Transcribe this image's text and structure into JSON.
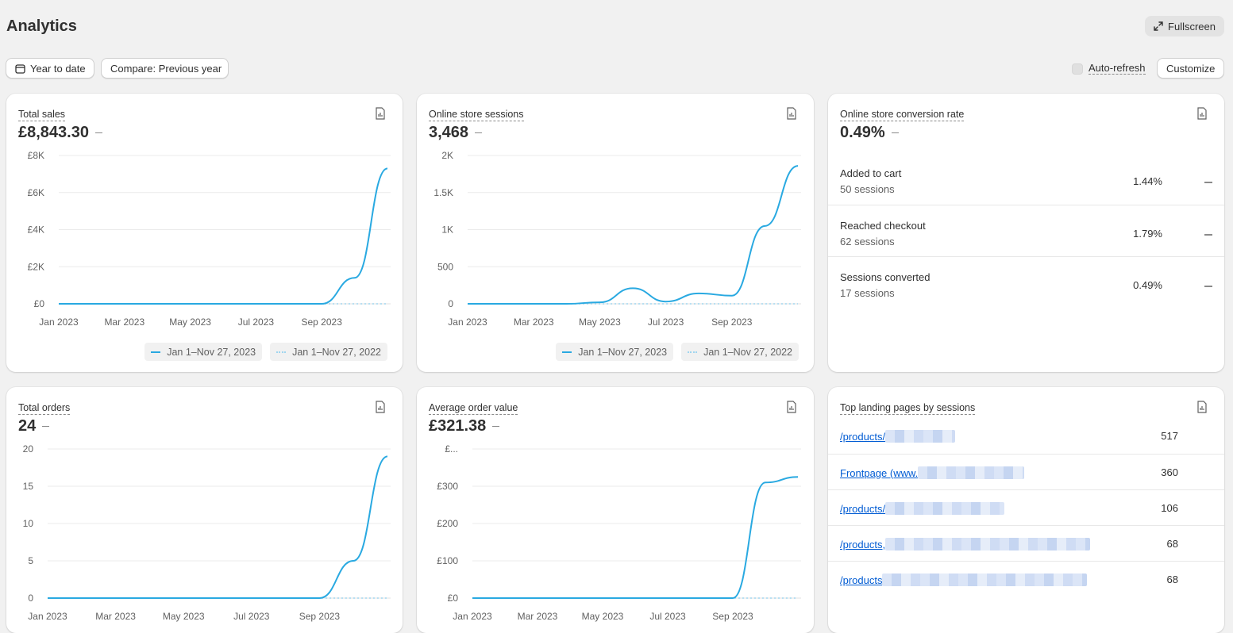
{
  "header": {
    "title": "Analytics",
    "fullscreen_label": "Fullscreen",
    "date_range_label": "Year to date",
    "compare_label": "Compare: Previous year",
    "auto_refresh_label": "Auto-refresh",
    "customize_label": "Customize"
  },
  "colors": {
    "series_current": "#29a9e1",
    "series_previous": "#9fd5ef",
    "link": "#005bd3"
  },
  "legend": {
    "current": "Jan 1–Nov 27, 2023",
    "previous": "Jan 1–Nov 27, 2022"
  },
  "cards": {
    "total_sales": {
      "title": "Total sales",
      "value": "£8,843.30"
    },
    "sessions": {
      "title": "Online store sessions",
      "value": "3,468"
    },
    "conversion": {
      "title": "Online store conversion rate",
      "value": "0.49%",
      "rows": [
        {
          "label": "Added to cart",
          "sub": "50 sessions",
          "pct": "1.44%"
        },
        {
          "label": "Reached checkout",
          "sub": "62 sessions",
          "pct": "1.79%"
        },
        {
          "label": "Sessions converted",
          "sub": "17 sessions",
          "pct": "0.49%"
        }
      ]
    },
    "orders": {
      "title": "Total orders",
      "value": "24"
    },
    "aov": {
      "title": "Average order value",
      "value": "£321.38"
    },
    "landing": {
      "title": "Top landing pages by sessions",
      "rows": [
        {
          "label": "/products/",
          "count": "517"
        },
        {
          "label": "Frontpage (www.",
          "count": "360"
        },
        {
          "label": "/products/",
          "count": "106"
        },
        {
          "label": "/products,",
          "count": "68"
        },
        {
          "label": "/products",
          "count": "68"
        }
      ]
    }
  },
  "chart_data": [
    {
      "type": "line",
      "title": "Total sales",
      "x": [
        "Jan 2023",
        "Feb 2023",
        "Mar 2023",
        "Apr 2023",
        "May 2023",
        "Jun 2023",
        "Jul 2023",
        "Aug 2023",
        "Sep 2023",
        "Oct 2023",
        "Nov 2023"
      ],
      "x_ticks": [
        "Jan 2023",
        "Mar 2023",
        "May 2023",
        "Jul 2023",
        "Sep 2023"
      ],
      "y_ticks": [
        "£0",
        "£2K",
        "£4K",
        "£6K",
        "£8K"
      ],
      "ylim": [
        0,
        8000
      ],
      "series": [
        {
          "name": "Jan 1–Nov 27, 2023",
          "values": [
            0,
            0,
            0,
            0,
            0,
            0,
            0,
            0,
            0,
            1400,
            7300
          ]
        },
        {
          "name": "Jan 1–Nov 27, 2022",
          "values": [
            0,
            0,
            0,
            0,
            0,
            0,
            0,
            0,
            0,
            0,
            0
          ]
        }
      ]
    },
    {
      "type": "line",
      "title": "Online store sessions",
      "x": [
        "Jan 2023",
        "Feb 2023",
        "Mar 2023",
        "Apr 2023",
        "May 2023",
        "Jun 2023",
        "Jul 2023",
        "Aug 2023",
        "Sep 2023",
        "Oct 2023",
        "Nov 2023"
      ],
      "x_ticks": [
        "Jan 2023",
        "Mar 2023",
        "May 2023",
        "Jul 2023",
        "Sep 2023"
      ],
      "y_ticks": [
        "0",
        "500",
        "1K",
        "1.5K",
        "2K"
      ],
      "ylim": [
        0,
        2000
      ],
      "series": [
        {
          "name": "Jan 1–Nov 27, 2023",
          "values": [
            0,
            0,
            0,
            0,
            20,
            210,
            30,
            140,
            110,
            1050,
            1860
          ]
        },
        {
          "name": "Jan 1–Nov 27, 2022",
          "values": [
            0,
            0,
            0,
            0,
            0,
            0,
            0,
            0,
            0,
            0,
            0
          ]
        }
      ]
    },
    {
      "type": "line",
      "title": "Total orders",
      "x": [
        "Jan 2023",
        "Feb 2023",
        "Mar 2023",
        "Apr 2023",
        "May 2023",
        "Jun 2023",
        "Jul 2023",
        "Aug 2023",
        "Sep 2023",
        "Oct 2023",
        "Nov 2023"
      ],
      "x_ticks": [
        "Jan 2023",
        "Mar 2023",
        "May 2023",
        "Jul 2023",
        "Sep 2023"
      ],
      "y_ticks": [
        "0",
        "5",
        "10",
        "15",
        "20"
      ],
      "ylim": [
        0,
        20
      ],
      "series": [
        {
          "name": "Jan 1–Nov 27, 2023",
          "values": [
            0,
            0,
            0,
            0,
            0,
            0,
            0,
            0,
            0,
            5,
            19
          ]
        },
        {
          "name": "Jan 1–Nov 27, 2022",
          "values": [
            0,
            0,
            0,
            0,
            0,
            0,
            0,
            0,
            0,
            0,
            0
          ]
        }
      ]
    },
    {
      "type": "line",
      "title": "Average order value",
      "x": [
        "Jan 2023",
        "Feb 2023",
        "Mar 2023",
        "Apr 2023",
        "May 2023",
        "Jun 2023",
        "Jul 2023",
        "Aug 2023",
        "Sep 2023",
        "Oct 2023",
        "Nov 2023"
      ],
      "x_ticks": [
        "Jan 2023",
        "Mar 2023",
        "May 2023",
        "Jul 2023",
        "Sep 2023"
      ],
      "y_ticks": [
        "£0",
        "£100",
        "£200",
        "£300",
        "£..."
      ],
      "ylim": [
        0,
        400
      ],
      "series": [
        {
          "name": "Jan 1–Nov 27, 2023",
          "values": [
            0,
            0,
            0,
            0,
            0,
            0,
            0,
            0,
            0,
            310,
            325
          ]
        },
        {
          "name": "Jan 1–Nov 27, 2022",
          "values": [
            0,
            0,
            0,
            0,
            0,
            0,
            0,
            0,
            0,
            0,
            0
          ]
        }
      ]
    }
  ]
}
